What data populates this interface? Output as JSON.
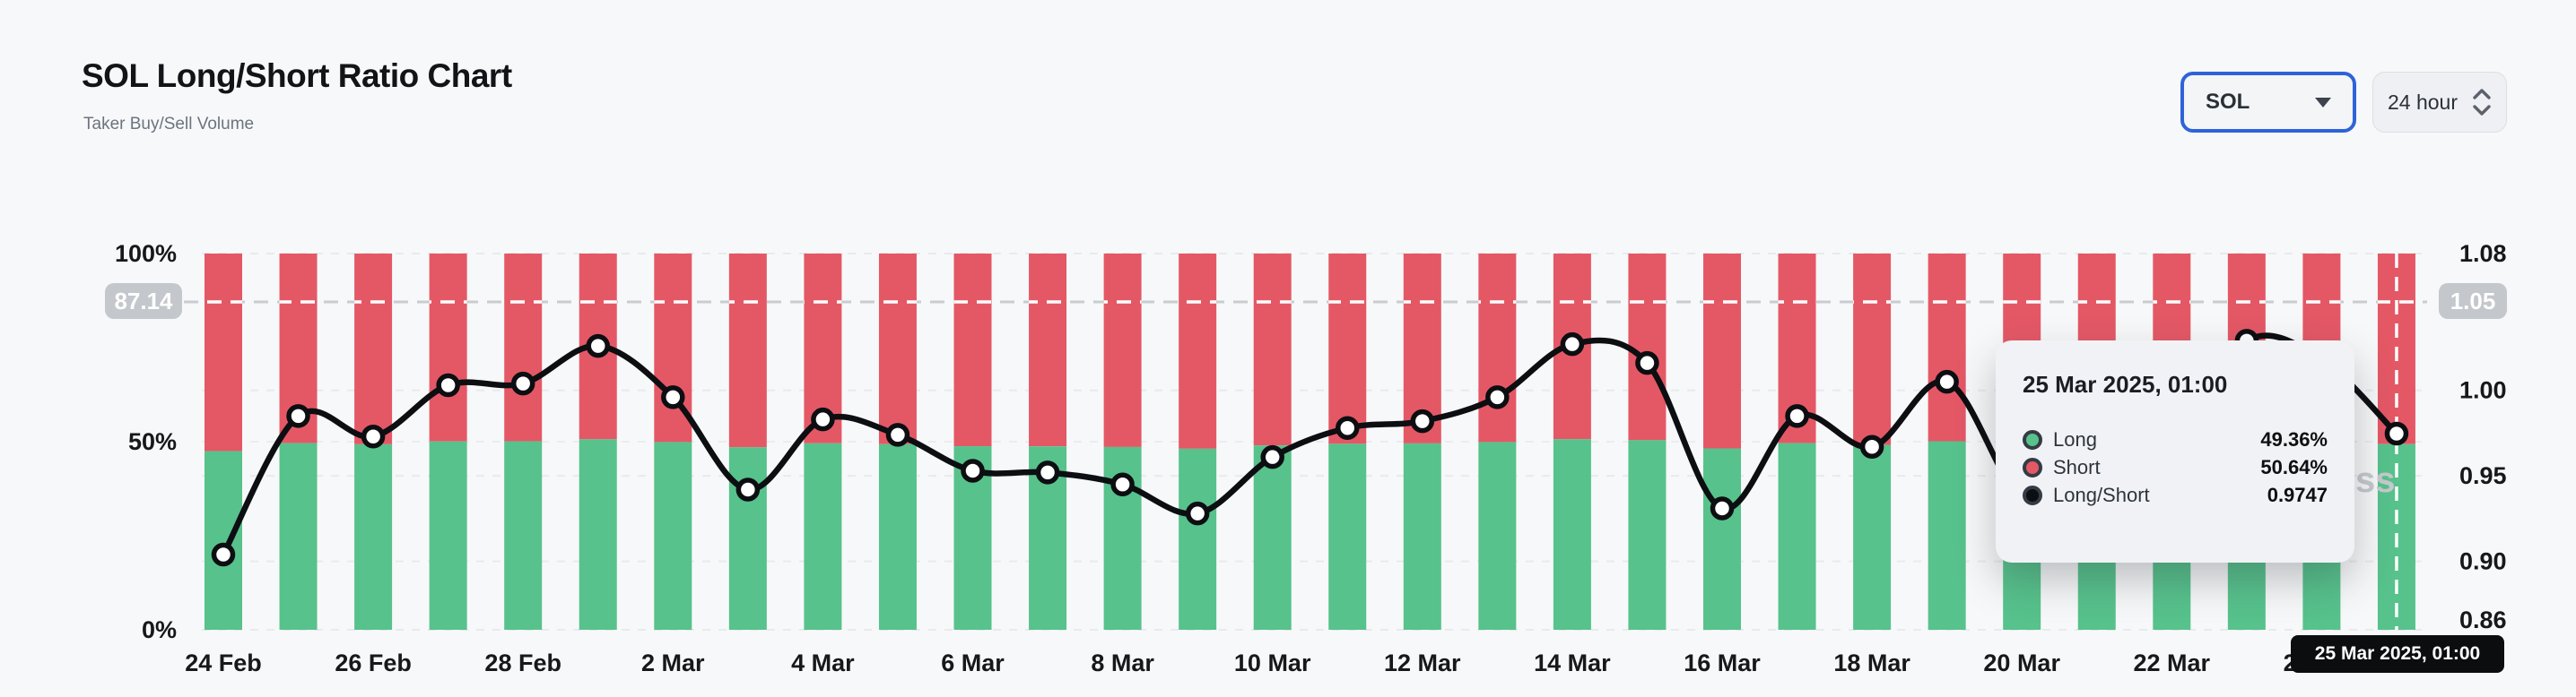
{
  "header": {
    "title": "SOL Long/Short Ratio Chart",
    "subtitle": "Taker Buy/Sell Volume"
  },
  "controls": {
    "symbol_select": {
      "value": "SOL"
    },
    "interval_select": {
      "value": "24 hour"
    }
  },
  "watermark": {
    "text": "ss"
  },
  "crosshair": {
    "percent": 87.14,
    "left_label": "87.14",
    "right_label": "1.05",
    "x_label": "25 Mar 2025, 01:00",
    "x_index": 29
  },
  "tooltip": {
    "title": "25 Mar 2025, 01:00",
    "rows": [
      {
        "label": "Long",
        "value": "49.36%",
        "color": "#57c28c"
      },
      {
        "label": "Short",
        "value": "50.64%",
        "color": "#e45866"
      },
      {
        "label": "Long/Short",
        "value": "0.9747",
        "color": "#0c0e11"
      }
    ]
  },
  "chart_data": {
    "type": "bar",
    "subtype": "stacked-bars-with-line",
    "title": "SOL Long/Short Ratio Chart",
    "categories": [
      "24 Feb",
      "25 Feb",
      "26 Feb",
      "27 Feb",
      "28 Feb",
      "1 Mar",
      "2 Mar",
      "3 Mar",
      "4 Mar",
      "5 Mar",
      "6 Mar",
      "7 Mar",
      "8 Mar",
      "9 Mar",
      "10 Mar",
      "11 Mar",
      "12 Mar",
      "13 Mar",
      "14 Mar",
      "15 Mar",
      "16 Mar",
      "17 Mar",
      "18 Mar",
      "19 Mar",
      "20 Mar",
      "21 Mar",
      "22 Mar",
      "23 Mar",
      "24 Mar",
      "25 Mar"
    ],
    "x_tick_every": 2,
    "series": [
      {
        "name": "Long",
        "type": "bar",
        "color": "#57c28c",
        "values": [
          47.48,
          49.62,
          49.32,
          50.07,
          50.1,
          50.64,
          49.9,
          48.51,
          49.57,
          49.34,
          48.8,
          48.77,
          48.59,
          48.13,
          49.01,
          49.44,
          49.55,
          49.9,
          50.67,
          50.4,
          48.21,
          49.62,
          49.16,
          50.12,
          48.35,
          48.19,
          49.19,
          50.74,
          50.45,
          49.36
        ]
      },
      {
        "name": "Short",
        "type": "bar",
        "color": "#e45866",
        "values": [
          52.52,
          50.38,
          50.68,
          49.93,
          49.9,
          49.36,
          50.1,
          51.49,
          50.43,
          50.66,
          51.2,
          51.23,
          51.41,
          51.87,
          50.99,
          50.56,
          50.45,
          50.1,
          49.33,
          49.6,
          51.79,
          50.38,
          50.84,
          49.88,
          51.65,
          51.81,
          50.81,
          49.26,
          49.55,
          50.64
        ]
      },
      {
        "name": "Long/Short",
        "type": "line",
        "color": "#0c0e11",
        "values": [
          0.904,
          0.985,
          0.973,
          1.003,
          1.004,
          1.026,
          0.996,
          0.942,
          0.983,
          0.974,
          0.953,
          0.952,
          0.945,
          0.928,
          0.961,
          0.978,
          0.982,
          0.996,
          1.027,
          1.016,
          0.931,
          0.985,
          0.967,
          1.005,
          0.936,
          0.93,
          0.968,
          1.029,
          1.018,
          0.9747
        ]
      }
    ],
    "y_left": {
      "range": [
        0,
        100
      ],
      "ticks": [
        {
          "v": 100,
          "t": "100%"
        },
        {
          "v": 50,
          "t": "50%"
        },
        {
          "v": 0,
          "t": "0%"
        }
      ]
    },
    "y_right": {
      "range": [
        0.86,
        1.08
      ],
      "ticks": [
        {
          "v": 1.08,
          "t": "1.08"
        },
        {
          "v": 1.0,
          "t": "1.00"
        },
        {
          "v": 0.95,
          "t": "0.95"
        },
        {
          "v": 0.9,
          "t": "0.90"
        },
        {
          "v": 0.86,
          "t": "0.86"
        }
      ]
    },
    "grid": true,
    "legend_position": "none"
  }
}
